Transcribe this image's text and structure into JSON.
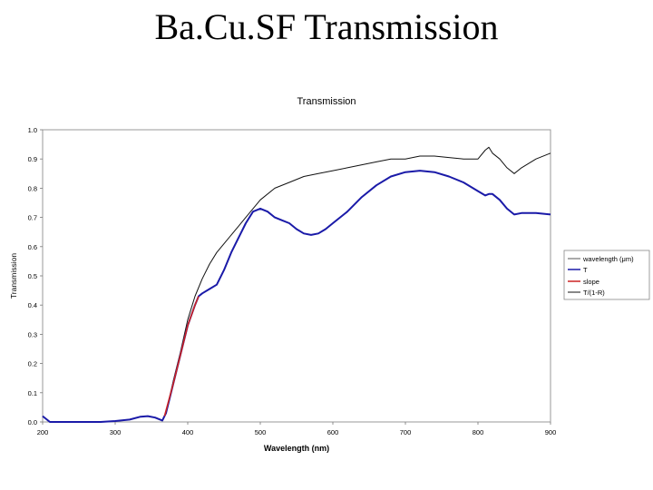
{
  "slide": {
    "title": "Ba.Cu.SF Transmission"
  },
  "chart_data": {
    "type": "line",
    "title": "Transmission",
    "xlabel": "Wavelength (nm)",
    "ylabel": "Transmission",
    "xlim": [
      200,
      900
    ],
    "ylim": [
      0,
      1
    ],
    "xticks": [
      200,
      300,
      400,
      500,
      600,
      700,
      800,
      900
    ],
    "yticks": [
      "0.0",
      "0.1",
      "0.2",
      "0.3",
      "0.4",
      "0.5",
      "0.6",
      "0.7",
      "0.8",
      "0.9",
      "1.0"
    ],
    "grid": false,
    "legend_position": "right",
    "legend": [
      "wavelength (μm)",
      "T",
      "slope",
      "T/(1-R)"
    ],
    "series": [
      {
        "name": "T",
        "color": "#1a1aa8",
        "x": [
          200,
          210,
          220,
          240,
          260,
          280,
          300,
          320,
          335,
          345,
          355,
          365,
          370,
          380,
          390,
          400,
          410,
          415,
          420,
          430,
          440,
          450,
          460,
          470,
          480,
          490,
          500,
          510,
          520,
          530,
          540,
          550,
          560,
          570,
          580,
          590,
          600,
          620,
          640,
          660,
          680,
          700,
          720,
          740,
          760,
          780,
          800,
          810,
          815,
          820,
          830,
          840,
          850,
          860,
          880,
          900
        ],
        "y": [
          0.02,
          0.0,
          0.0,
          0.0,
          0.0,
          0.0,
          0.003,
          0.008,
          0.018,
          0.02,
          0.015,
          0.005,
          0.03,
          0.13,
          0.23,
          0.33,
          0.4,
          0.43,
          0.44,
          0.455,
          0.47,
          0.52,
          0.58,
          0.63,
          0.68,
          0.72,
          0.73,
          0.72,
          0.7,
          0.69,
          0.68,
          0.66,
          0.645,
          0.64,
          0.645,
          0.66,
          0.68,
          0.72,
          0.77,
          0.81,
          0.84,
          0.855,
          0.86,
          0.855,
          0.84,
          0.82,
          0.79,
          0.775,
          0.78,
          0.78,
          0.76,
          0.73,
          0.71,
          0.715,
          0.715,
          0.71
        ]
      },
      {
        "name": "slope",
        "color": "#cc2222",
        "x": [
          368,
          380,
          390,
          400,
          410,
          415
        ],
        "y": [
          0.02,
          0.13,
          0.23,
          0.33,
          0.4,
          0.43
        ]
      },
      {
        "name": "T/(1-R)",
        "color": "#111111",
        "x": [
          370,
          380,
          390,
          400,
          410,
          420,
          430,
          440,
          450,
          460,
          470,
          480,
          490,
          500,
          520,
          540,
          560,
          580,
          600,
          620,
          640,
          660,
          680,
          700,
          720,
          740,
          760,
          780,
          800,
          810,
          815,
          820,
          830,
          840,
          850,
          860,
          880,
          900
        ],
        "y": [
          0.03,
          0.14,
          0.24,
          0.35,
          0.43,
          0.49,
          0.54,
          0.58,
          0.61,
          0.64,
          0.67,
          0.7,
          0.73,
          0.76,
          0.8,
          0.82,
          0.84,
          0.85,
          0.86,
          0.87,
          0.88,
          0.89,
          0.9,
          0.9,
          0.91,
          0.91,
          0.905,
          0.9,
          0.9,
          0.93,
          0.94,
          0.92,
          0.9,
          0.87,
          0.85,
          0.87,
          0.9,
          0.92
        ]
      }
    ]
  }
}
